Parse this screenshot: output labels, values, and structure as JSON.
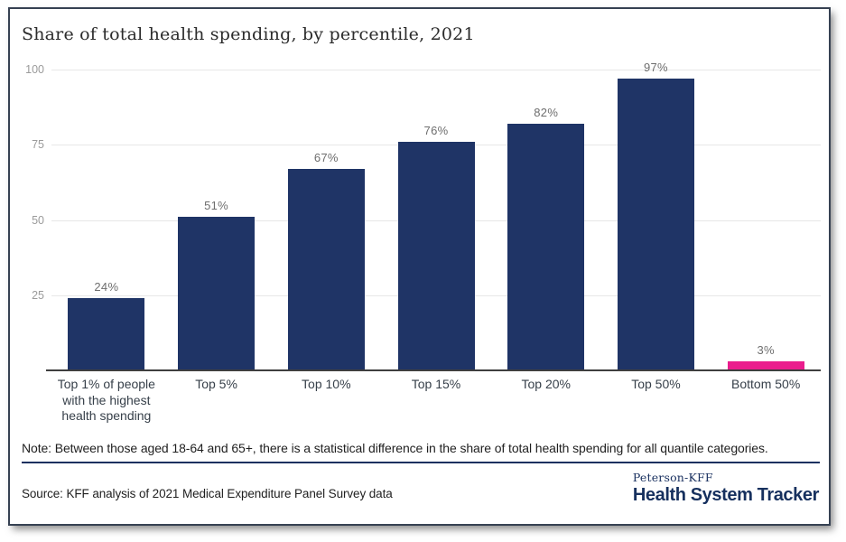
{
  "chart_data": {
    "type": "bar",
    "title": "Share of total health spending, by percentile, 2021",
    "categories": [
      "Top 1% of people with the highest health spending",
      "Top 5%",
      "Top 10%",
      "Top 15%",
      "Top 20%",
      "Top 50%",
      "Bottom 50%"
    ],
    "values": [
      24,
      51,
      67,
      76,
      82,
      97,
      3
    ],
    "value_labels": [
      "24%",
      "51%",
      "67%",
      "76%",
      "82%",
      "97%",
      "3%"
    ],
    "bar_colors": [
      "#1f3466",
      "#1f3466",
      "#1f3466",
      "#1f3466",
      "#1f3466",
      "#1f3466",
      "#ea1d8d"
    ],
    "y_ticks": [
      100,
      75,
      50,
      25
    ],
    "y_tick_labels": [
      "100",
      "75",
      "50",
      "25"
    ],
    "ylim": [
      0,
      100
    ],
    "grid": true,
    "legend": "none",
    "xlabel": "",
    "ylabel": ""
  },
  "note": "Note: Between those aged 18-64 and 65+, there is a statistical difference in the share of total health spending for all quantile categories.",
  "source": "Source: KFF analysis of 2021 Medical Expenditure Panel Survey data",
  "branding": {
    "peterson": "Peterson-KFF",
    "tracker": "Health System Tracker"
  },
  "colors": {
    "bar_navy": "#1f3466",
    "bar_pink": "#ea1d8d",
    "logo_navy": "#16305e",
    "divider_navy": "#1a3160",
    "gridline": "#e7e7e7",
    "axis_line": "#3f3f3f"
  }
}
